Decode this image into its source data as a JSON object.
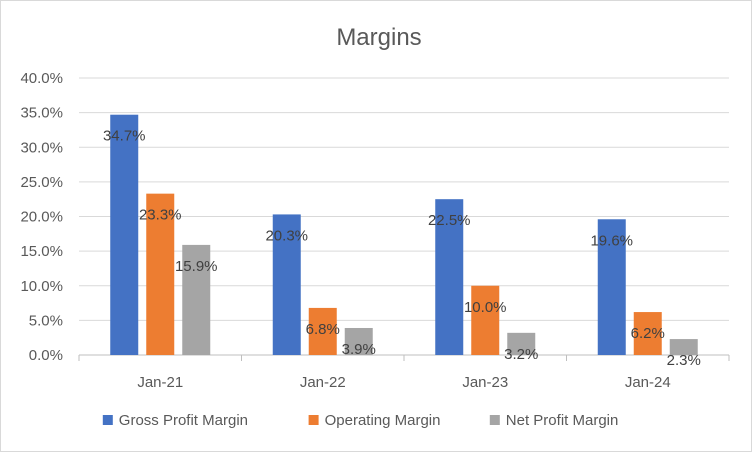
{
  "chart_data": {
    "type": "bar",
    "title": "Margins",
    "xlabel": "",
    "ylabel": "",
    "categories": [
      "Jan-21",
      "Jan-22",
      "Jan-23",
      "Jan-24"
    ],
    "series": [
      {
        "name": "Gross Profit Margin",
        "values": [
          34.7,
          20.3,
          22.5,
          19.6
        ],
        "labels": [
          "34.7%",
          "20.3%",
          "22.5%",
          "19.6%"
        ],
        "color": "#4472C4"
      },
      {
        "name": "Operating Margin",
        "values": [
          23.3,
          6.8,
          10.0,
          6.2
        ],
        "labels": [
          "23.3%",
          "6.8%",
          "10.0%",
          "6.2%"
        ],
        "color": "#ED7D31"
      },
      {
        "name": "Net Profit Margin",
        "values": [
          15.9,
          3.9,
          3.2,
          2.3
        ],
        "labels": [
          "15.9%",
          "3.9%",
          "3.2%",
          "2.3%"
        ],
        "color": "#A5A5A5"
      }
    ],
    "ylim": [
      0,
      40
    ],
    "yticks": [
      0,
      5,
      10,
      15,
      20,
      25,
      30,
      35,
      40
    ],
    "ytick_labels": [
      "0.0%",
      "5.0%",
      "10.0%",
      "15.0%",
      "20.0%",
      "25.0%",
      "30.0%",
      "35.0%",
      "40.0%"
    ],
    "grid": true,
    "legend_position": "bottom",
    "gridline_color": "#d9d9d9",
    "axis_color": "#bfbfbf"
  }
}
